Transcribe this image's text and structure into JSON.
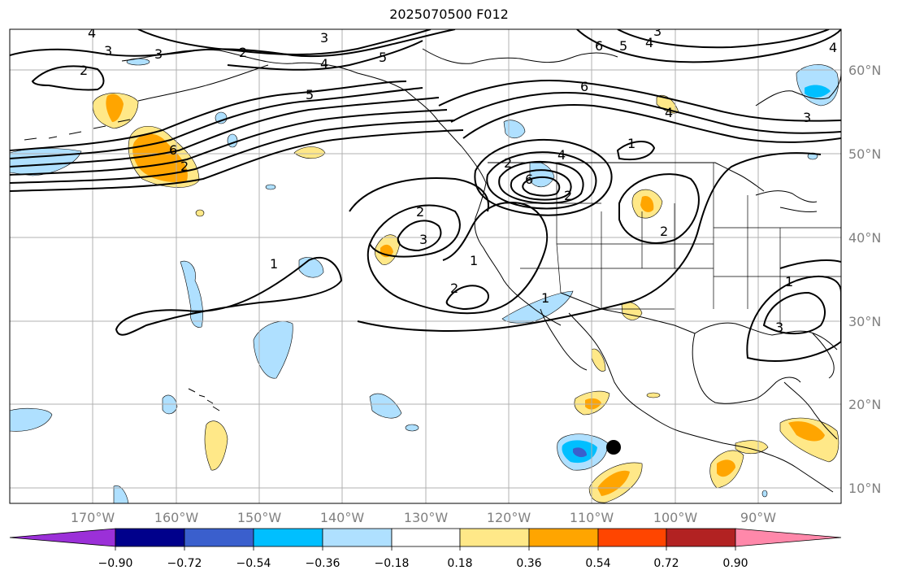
{
  "title": "2025070500 F012",
  "map": {
    "projection": "plate-carree",
    "lon_range": [
      -180,
      -80
    ],
    "lat_range": [
      8,
      65
    ],
    "grid": true,
    "lat_labels": [
      "60°N",
      "50°N",
      "40°N",
      "30°N",
      "20°N",
      "10°N"
    ],
    "lon_labels": [
      "170°W",
      "160°W",
      "150°W",
      "140°W",
      "130°W",
      "120°W",
      "110°W",
      "100°W",
      "90°W"
    ],
    "contour_labels": [
      "4",
      "3",
      "3",
      "2",
      "2",
      "5",
      "4",
      "3",
      "6",
      "5",
      "4",
      "6",
      "5",
      "4",
      "3",
      "4",
      "6",
      "2",
      "2",
      "4",
      "6",
      "3",
      "1",
      "2",
      "3",
      "2",
      "1",
      "1",
      "2",
      "2",
      "1",
      "1",
      "3"
    ],
    "marker": {
      "label": "black dot",
      "lon": -107.5,
      "lat": 14.5
    },
    "colors": {
      "land_outline": "#000000",
      "grid": "#b0b0b0",
      "contour": "#000000"
    }
  },
  "colorbar": {
    "ticks": [
      "−0.90",
      "−0.72",
      "−0.54",
      "−0.36",
      "−0.18",
      "0.18",
      "0.36",
      "0.54",
      "0.72",
      "0.90"
    ],
    "colors": [
      "#9b30d8",
      "#00008b",
      "#3a5fcd",
      "#00bfff",
      "#afe0ff",
      "#ffffff",
      "#ffe888",
      "#ffa500",
      "#ff4500",
      "#b22222",
      "#ff88aa"
    ]
  }
}
